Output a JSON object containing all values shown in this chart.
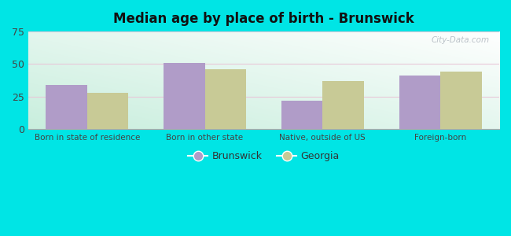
{
  "title": "Median age by place of birth - Brunswick",
  "categories": [
    "Born in state of residence",
    "Born in other state",
    "Native, outside of US",
    "Foreign-born"
  ],
  "brunswick_values": [
    34,
    51,
    22,
    41
  ],
  "georgia_values": [
    28,
    46,
    37,
    44
  ],
  "brunswick_color": "#b09cc8",
  "georgia_color": "#c8ca96",
  "ylim": [
    0,
    75
  ],
  "yticks": [
    0,
    25,
    50,
    75
  ],
  "outer_bg": "#00e5e5",
  "legend_brunswick": "Brunswick",
  "legend_georgia": "Georgia",
  "bar_width": 0.35,
  "grid_color": "#e8c8d8",
  "gradient_top": "#e8f5ee",
  "gradient_bottom": "#c8eedd"
}
